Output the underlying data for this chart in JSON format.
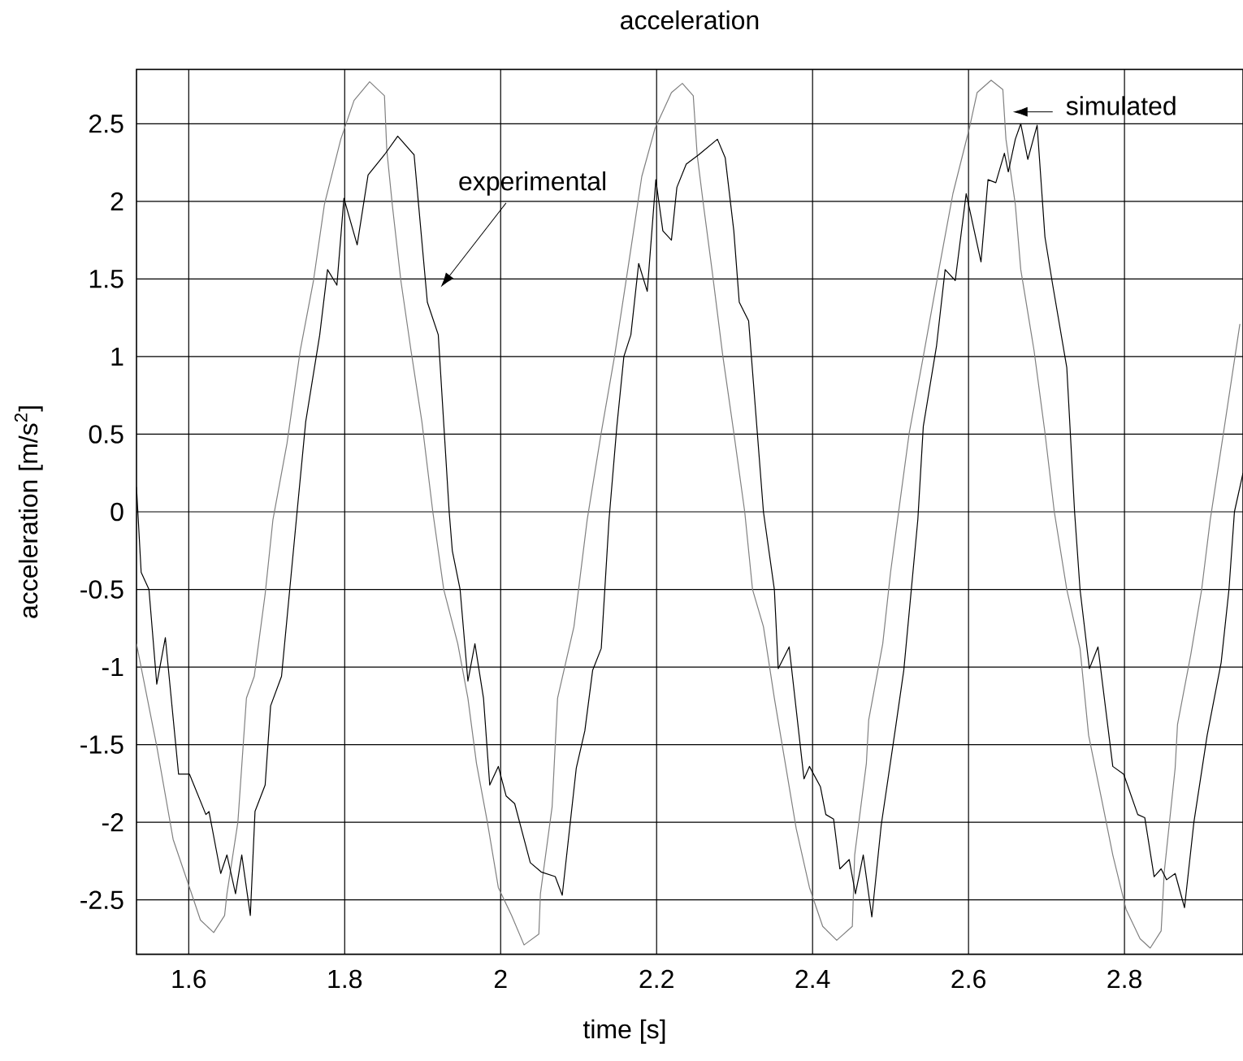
{
  "chart_data": {
    "type": "line",
    "title": "acceleration",
    "xlabel": "time [s]",
    "ylabel": "acceleration [m/s$^{2}$]",
    "xlim": [
      1.533,
      2.952
    ],
    "ylim": [
      -2.85,
      2.85
    ],
    "xticks": [
      1.6,
      1.8,
      2,
      2.2,
      2.4,
      2.6,
      2.8
    ],
    "yticks": [
      -2.5,
      -2,
      -1.5,
      -1,
      -0.5,
      0,
      0.5,
      1,
      1.5,
      2,
      2.5
    ],
    "grid": true,
    "marker": "none",
    "line_style": "solid",
    "series": [
      {
        "color": "#808080",
        "x": [
          1.533,
          1.559,
          1.58,
          1.601,
          1.615,
          1.632,
          1.646,
          1.649,
          1.663,
          1.674,
          1.684,
          1.698,
          1.708,
          1.726,
          1.743,
          1.76,
          1.774,
          1.795,
          1.812,
          1.832,
          1.851,
          1.854,
          1.861,
          1.872,
          1.885,
          1.899,
          1.913,
          1.927,
          1.945,
          1.958,
          1.969,
          1.983,
          1.997,
          2.014,
          2.03,
          2.049,
          2.051,
          2.066,
          2.073,
          2.094,
          2.111,
          2.129,
          2.146,
          2.163,
          2.181,
          2.198,
          2.219,
          2.233,
          2.247,
          2.252,
          2.26,
          2.271,
          2.285,
          2.299,
          2.313,
          2.323,
          2.337,
          2.351,
          2.365,
          2.379,
          2.396,
          2.413,
          2.431,
          2.451,
          2.454,
          2.469,
          2.472,
          2.49,
          2.5,
          2.509,
          2.524,
          2.542,
          2.562,
          2.58,
          2.601,
          2.611,
          2.629,
          2.644,
          2.648,
          2.66,
          2.667,
          2.684,
          2.698,
          2.71,
          2.726,
          2.743,
          2.754,
          2.771,
          2.785,
          2.802,
          2.82,
          2.833,
          2.847,
          2.851,
          2.865,
          2.868,
          2.885,
          2.899,
          2.91,
          2.927,
          2.948
        ],
        "values": [
          -0.85,
          -1.51,
          -2.11,
          -2.42,
          -2.63,
          -2.71,
          -2.6,
          -2.46,
          -2.0,
          -1.2,
          -1.06,
          -0.53,
          -0.05,
          0.44,
          1.04,
          1.49,
          1.98,
          2.4,
          2.65,
          2.77,
          2.68,
          2.33,
          1.98,
          1.49,
          1.04,
          0.58,
          0,
          -0.5,
          -0.85,
          -1.2,
          -1.62,
          -2.0,
          -2.42,
          -2.6,
          -2.79,
          -2.72,
          -2.46,
          -1.9,
          -1.2,
          -0.74,
          -0.05,
          0.51,
          1.0,
          1.56,
          2.16,
          2.47,
          2.7,
          2.76,
          2.68,
          2.3,
          1.98,
          1.56,
          1.0,
          0.51,
          0,
          -0.5,
          -0.74,
          -1.2,
          -1.62,
          -2.04,
          -2.42,
          -2.67,
          -2.76,
          -2.67,
          -2.21,
          -1.62,
          -1.34,
          -0.85,
          -0.39,
          -0.05,
          0.51,
          1.0,
          1.56,
          2.05,
          2.47,
          2.7,
          2.78,
          2.72,
          2.4,
          1.98,
          1.56,
          1.04,
          0.51,
          0,
          -0.5,
          -0.88,
          -1.44,
          -1.86,
          -2.21,
          -2.56,
          -2.75,
          -2.81,
          -2.7,
          -2.32,
          -1.65,
          -1.37,
          -0.92,
          -0.5,
          -0.05,
          0.51,
          1.21
        ]
      },
      {
        "color": "#000000",
        "x": [
          1.533,
          1.539,
          1.549,
          1.559,
          1.57,
          1.587,
          1.601,
          1.622,
          1.626,
          1.641,
          1.649,
          1.66,
          1.668,
          1.679,
          1.685,
          1.698,
          1.705,
          1.719,
          1.738,
          1.75,
          1.768,
          1.778,
          1.79,
          1.799,
          1.816,
          1.83,
          1.851,
          1.868,
          1.889,
          1.906,
          1.92,
          1.934,
          1.938,
          1.948,
          1.958,
          1.967,
          1.978,
          1.986,
          1.997,
          2.007,
          2.018,
          2.038,
          2.052,
          2.07,
          2.079,
          2.097,
          2.108,
          2.118,
          2.129,
          2.139,
          2.149,
          2.158,
          2.167,
          2.177,
          2.188,
          2.199,
          2.208,
          2.219,
          2.226,
          2.238,
          2.254,
          2.278,
          2.288,
          2.299,
          2.306,
          2.318,
          2.337,
          2.351,
          2.356,
          2.37,
          2.389,
          2.396,
          2.41,
          2.417,
          2.427,
          2.435,
          2.447,
          2.455,
          2.465,
          2.476,
          2.488,
          2.507,
          2.517,
          2.535,
          2.542,
          2.559,
          2.57,
          2.583,
          2.597,
          2.616,
          2.625,
          2.635,
          2.646,
          2.651,
          2.66,
          2.667,
          2.676,
          2.688,
          2.698,
          2.708,
          2.726,
          2.736,
          2.743,
          2.755,
          2.766,
          2.785,
          2.799,
          2.817,
          2.826,
          2.838,
          2.847,
          2.854,
          2.865,
          2.877,
          2.889,
          2.906,
          2.924,
          2.934,
          2.941,
          2.952
        ],
        "values": [
          0.16,
          -0.39,
          -0.5,
          -1.11,
          -0.81,
          -1.69,
          -1.69,
          -1.95,
          -1.93,
          -2.33,
          -2.21,
          -2.46,
          -2.21,
          -2.6,
          -1.93,
          -1.76,
          -1.25,
          -1.06,
          -0.05,
          0.58,
          1.14,
          1.56,
          1.46,
          2.02,
          1.72,
          2.17,
          2.3,
          2.42,
          2.3,
          1.35,
          1.14,
          0,
          -0.25,
          -0.5,
          -1.09,
          -0.85,
          -1.2,
          -1.76,
          -1.64,
          -1.83,
          -1.88,
          -2.26,
          -2.32,
          -2.35,
          -2.47,
          -1.65,
          -1.41,
          -1.02,
          -0.88,
          -0.05,
          0.55,
          1.0,
          1.14,
          1.6,
          1.42,
          2.14,
          1.81,
          1.75,
          2.09,
          2.24,
          2.3,
          2.4,
          2.28,
          1.81,
          1.35,
          1.23,
          0,
          -0.5,
          -1.01,
          -0.87,
          -1.72,
          -1.64,
          -1.77,
          -1.95,
          -1.98,
          -2.3,
          -2.24,
          -2.46,
          -2.21,
          -2.61,
          -2.02,
          -1.37,
          -1.02,
          -0.05,
          0.55,
          1.07,
          1.56,
          1.49,
          2.05,
          1.61,
          2.14,
          2.12,
          2.31,
          2.19,
          2.4,
          2.5,
          2.27,
          2.49,
          1.77,
          1.46,
          0.93,
          0,
          -0.5,
          -1.01,
          -0.87,
          -1.64,
          -1.69,
          -1.95,
          -1.97,
          -2.35,
          -2.3,
          -2.37,
          -2.33,
          -2.55,
          -2.0,
          -1.44,
          -0.97,
          -0.5,
          0,
          0.25
        ]
      }
    ],
    "annotations": [
      "experimental",
      "simulated"
    ]
  }
}
